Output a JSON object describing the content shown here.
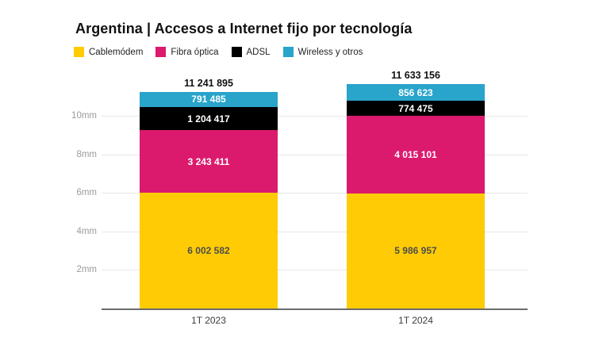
{
  "title": "Argentina | Accesos a Internet fijo por tecnología",
  "legend": [
    {
      "key": "cablemodem",
      "label": "Cablemódem",
      "color": "#FFCB05"
    },
    {
      "key": "fibra-optica",
      "label": "Fibra óptica",
      "color": "#DB1A6E"
    },
    {
      "key": "adsl",
      "label": "ADSL",
      "color": "#000000"
    },
    {
      "key": "wireless-otros",
      "label": "Wireless y otros",
      "color": "#29A4CB"
    }
  ],
  "chart_data": {
    "type": "bar",
    "stacked": true,
    "categories": [
      "1T 2023",
      "1T 2024"
    ],
    "series": [
      {
        "key": "cablemodem",
        "name": "Cablemódem",
        "color": "#FFCB05",
        "label_color": "#4d4d4d",
        "values": [
          6002582,
          5986957
        ],
        "labels": [
          "6 002 582",
          "5 986 957"
        ]
      },
      {
        "key": "fibra-optica",
        "name": "Fibra óptica",
        "color": "#DB1A6E",
        "label_color": "#ffffff",
        "values": [
          3243411,
          4015101
        ],
        "labels": [
          "3 243 411",
          "4 015 101"
        ]
      },
      {
        "key": "adsl",
        "name": "ADSL",
        "color": "#000000",
        "label_color": "#ffffff",
        "values": [
          1204417,
          774475
        ],
        "labels": [
          "1 204 417",
          "774 475"
        ]
      },
      {
        "key": "wireless-otros",
        "name": "Wireless y otros",
        "color": "#29A4CB",
        "label_color": "#ffffff",
        "values": [
          791485,
          856623
        ],
        "labels": [
          "791 485",
          "856 623"
        ]
      }
    ],
    "totals": [
      11241895,
      11633156
    ],
    "total_labels": [
      "11 241 895",
      "11 633 156"
    ],
    "y_axis": {
      "tick_labels": [
        "2mm",
        "4mm",
        "6mm",
        "8mm",
        "10mm"
      ],
      "tick_values": [
        2000000,
        4000000,
        6000000,
        8000000,
        10000000
      ],
      "min": 0,
      "max": 11633156,
      "grid": true
    },
    "legend_position": "top",
    "colors": {
      "grid": "#e7e7e7",
      "axis": "#6b6b6b",
      "total_label": "#111111",
      "tick_label": "#9b9b9b",
      "category_label": "#3c3c3c",
      "background": "#ffffff"
    }
  }
}
